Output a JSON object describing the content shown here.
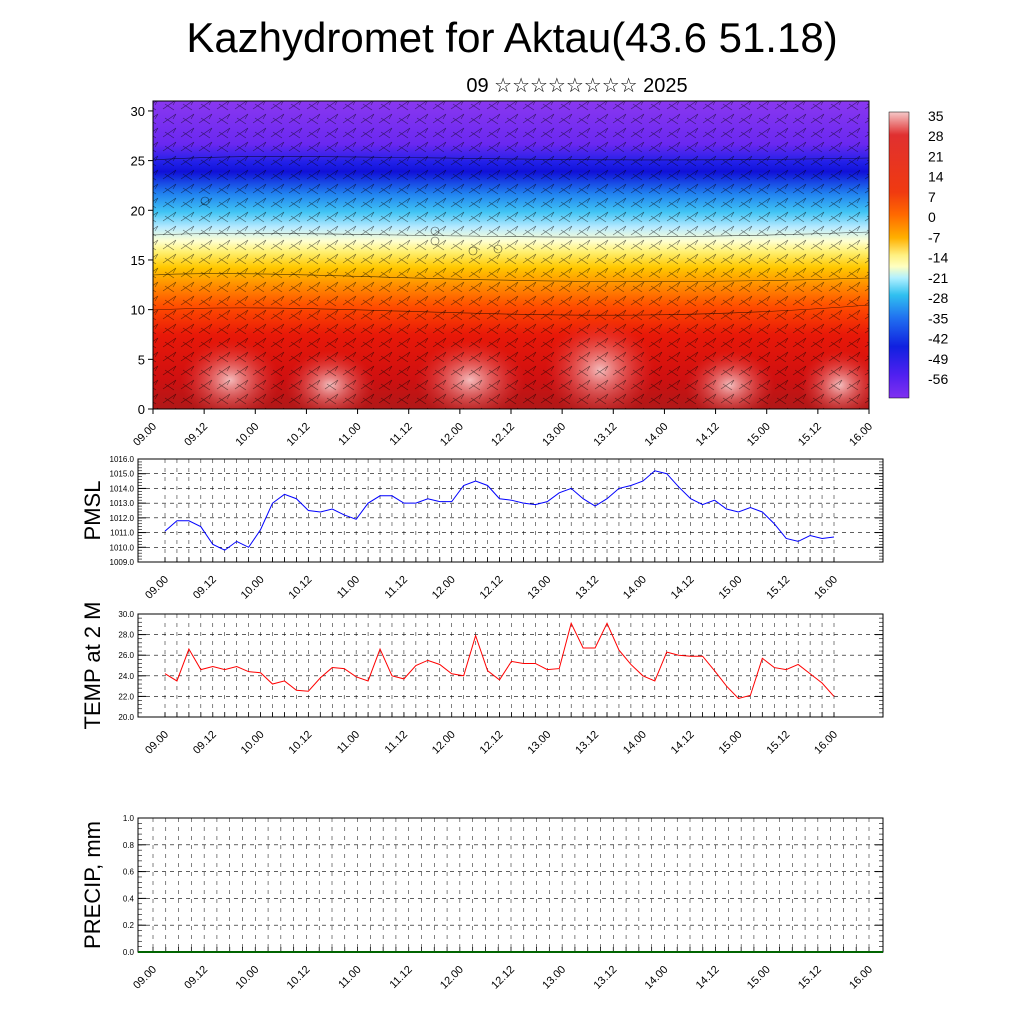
{
  "title": "Kazhydromet for Aktau(43.6 51.18)",
  "subtitle": "09 ☆☆☆☆☆☆☆☆ 2025",
  "chart_data": [
    {
      "type": "heatmap",
      "name": "vertical-section",
      "yticks": [
        "0",
        "5",
        "10",
        "15",
        "20",
        "25",
        "30"
      ],
      "ylim": [
        0,
        31
      ],
      "xticks": [
        "09.00",
        "09.12",
        "10.00",
        "10.12",
        "11.00",
        "11.12",
        "12.00",
        "12.12",
        "13.00",
        "13.12",
        "14.00",
        "14.12",
        "15.00",
        "15.12",
        "16.00"
      ],
      "colorbar": [
        "35",
        "28",
        "21",
        "14",
        "7",
        "0",
        "-7",
        "-14",
        "-21",
        "-28",
        "-35",
        "-42",
        "-49",
        "-56"
      ],
      "colors": [
        "#f5c8c8",
        "#e03030",
        "#f03a10",
        "#ff6a00",
        "#ffb000",
        "#fff080",
        "#ffffc0",
        "#b0f0ff",
        "#30c0f0",
        "#2070f0",
        "#1020e0",
        "#5020f0",
        "#8030f0"
      ]
    },
    {
      "type": "line",
      "name": "pmsl",
      "ylabel": "PMSL",
      "ylim": [
        1009.0,
        1016.0
      ],
      "yticks": [
        "1009.0",
        "1010.0",
        "1011.0",
        "1012.0",
        "1013.0",
        "1014.0",
        "1015.0",
        "1016.0"
      ],
      "xticks": [
        "09.00",
        "09.12",
        "10.00",
        "10.12",
        "11.00",
        "11.12",
        "12.00",
        "12.12",
        "13.00",
        "13.12",
        "14.00",
        "14.12",
        "15.00",
        "15.12",
        "16.00"
      ],
      "color": "#0000ff",
      "values": [
        1011.1,
        1011.8,
        1011.8,
        1011.4,
        1010.2,
        1009.8,
        1010.4,
        1010.0,
        1011.2,
        1013.0,
        1013.6,
        1013.3,
        1012.5,
        1012.4,
        1012.6,
        1012.2,
        1011.9,
        1013.0,
        1013.5,
        1013.5,
        1013.0,
        1013.0,
        1013.3,
        1013.1,
        1013.1,
        1014.2,
        1014.5,
        1014.2,
        1013.3,
        1013.2,
        1013.0,
        1012.9,
        1013.1,
        1013.7,
        1014.0,
        1013.3,
        1012.8,
        1013.3,
        1014.0,
        1014.2,
        1014.5,
        1015.2,
        1015.0,
        1014.1,
        1013.3,
        1012.9,
        1013.2,
        1012.6,
        1012.4,
        1012.7,
        1012.4,
        1011.6,
        1010.6,
        1010.4,
        1010.8,
        1010.6,
        1010.7
      ]
    },
    {
      "type": "line",
      "name": "temp2m",
      "ylabel": "TEMP at 2 M",
      "ylim": [
        20.0,
        30.0
      ],
      "yticks": [
        "20.0",
        "22.0",
        "24.0",
        "26.0",
        "28.0",
        "30.0"
      ],
      "xticks": [
        "09.00",
        "09.12",
        "10.00",
        "10.12",
        "11.00",
        "11.12",
        "12.00",
        "12.12",
        "13.00",
        "13.12",
        "14.00",
        "14.12",
        "15.00",
        "15.12",
        "16.00"
      ],
      "color": "#ff0000",
      "values": [
        24.2,
        23.5,
        26.6,
        24.6,
        24.9,
        24.6,
        24.9,
        24.4,
        24.3,
        23.2,
        23.5,
        22.6,
        22.5,
        23.8,
        24.8,
        24.7,
        23.9,
        23.5,
        26.6,
        24.0,
        23.7,
        25.0,
        25.5,
        25.1,
        24.2,
        24.0,
        27.9,
        24.5,
        23.6,
        25.4,
        25.2,
        25.2,
        24.6,
        24.7,
        29.1,
        26.7,
        26.7,
        29.1,
        26.5,
        25.1,
        24.0,
        23.5,
        26.3,
        26.0,
        25.9,
        25.9,
        24.5,
        23.0,
        21.8,
        22.1,
        25.7,
        24.8,
        24.6,
        25.1,
        24.2,
        23.3,
        22.0
      ]
    },
    {
      "type": "bar",
      "name": "precip",
      "ylabel": "PRECIP, mm",
      "ylim": [
        0.0,
        1.0
      ],
      "yticks": [
        "0.0",
        "0.2",
        "0.4",
        "0.6",
        "0.8",
        "1.0"
      ],
      "xticks": [
        "09.00",
        "09.12",
        "10.00",
        "10.12",
        "11.00",
        "11.12",
        "12.00",
        "12.12",
        "13.00",
        "13.12",
        "14.00",
        "14.12",
        "15.00",
        "15.12",
        "16.00"
      ],
      "color": "#006400",
      "values": []
    }
  ]
}
